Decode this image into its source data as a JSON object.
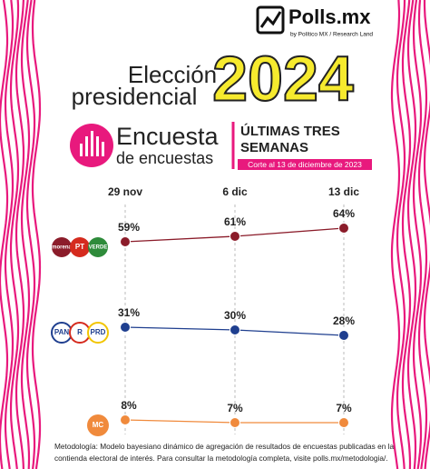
{
  "header": {
    "brand": "Polls.mx",
    "byline": "by Político MX / Research Land"
  },
  "chart_data": {
    "type": "line",
    "title": [
      "Elección",
      "presidencial"
    ],
    "title_year": "2024",
    "subtitle": [
      "Encuesta",
      "de encuestas"
    ],
    "period": [
      "ÚLTIMAS TRES",
      "SEMANAS"
    ],
    "cutoff": "Corte al 13 de diciembre de 2023",
    "categories": [
      "29 nov",
      "6 dic",
      "13 dic"
    ],
    "series": [
      {
        "logo": [
          "morena",
          "PT",
          "VERDE"
        ],
        "color": "#8b1c2a",
        "values": [
          59,
          61,
          64
        ],
        "value_labels": [
          "59%",
          "61%",
          "64%"
        ]
      },
      {
        "logo": [
          "PAN",
          "R",
          "PRD"
        ],
        "color": "#1f3f8f",
        "values": [
          31,
          30,
          28
        ],
        "value_labels": [
          "31%",
          "30%",
          "28%"
        ]
      },
      {
        "logo": [
          "MC"
        ],
        "color": "#f08a3c",
        "values": [
          8,
          7,
          7
        ],
        "value_labels": [
          "8%",
          "7%",
          "7%"
        ]
      }
    ],
    "grid": true,
    "note": [
      "Metodología: Modelo bayesiano dinámico de agregación de resultados de encuestas publicadas en la",
      "contienda electoral de interés. Para consultar la metodología completa, visite polls.mx/metodologia/."
    ]
  }
}
